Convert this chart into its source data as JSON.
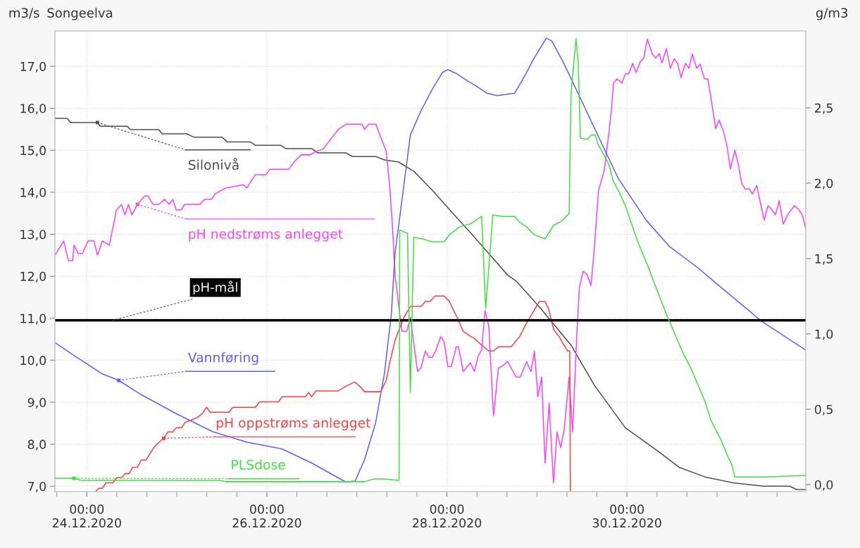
{
  "chart_data": {
    "type": "line",
    "title": "Songeelva",
    "ylabel": "m3/s",
    "y2label": "g/m3",
    "grid": true,
    "xlim": [
      "2020-12-23T15:30",
      "2020-12-31T23:40"
    ],
    "ylim": [
      6.87,
      17.84
    ],
    "y2lim": [
      -0.047,
      3.01
    ],
    "xticks": [
      {
        "value": "2020-12-23T16:00",
        "label": null
      },
      {
        "value": "2020-12-24T00:00",
        "label": "00:00\n24.12.2020"
      },
      {
        "value": "2020-12-24T08:00",
        "label": null
      },
      {
        "value": "2020-12-24T16:00",
        "label": null
      },
      {
        "value": "2020-12-25T00:00",
        "label": null
      },
      {
        "value": "2020-12-25T08:00",
        "label": null
      },
      {
        "value": "2020-12-25T16:00",
        "label": null
      },
      {
        "value": "2020-12-26T00:00",
        "label": "00:00\n26.12.2020"
      },
      {
        "value": "2020-12-26T08:00",
        "label": null
      },
      {
        "value": "2020-12-26T16:00",
        "label": null
      },
      {
        "value": "2020-12-27T00:00",
        "label": null
      },
      {
        "value": "2020-12-27T08:00",
        "label": null
      },
      {
        "value": "2020-12-27T16:00",
        "label": null
      },
      {
        "value": "2020-12-28T00:00",
        "label": "00:00\n28.12.2020"
      },
      {
        "value": "2020-12-28T08:00",
        "label": null
      },
      {
        "value": "2020-12-28T16:00",
        "label": null
      },
      {
        "value": "2020-12-29T00:00",
        "label": null
      },
      {
        "value": "2020-12-29T08:00",
        "label": null
      },
      {
        "value": "2020-12-29T16:00",
        "label": null
      },
      {
        "value": "2020-12-30T00:00",
        "label": "00:00\n30.12.2020"
      },
      {
        "value": "2020-12-30T08:00",
        "label": null
      },
      {
        "value": "2020-12-30T16:00",
        "label": null
      },
      {
        "value": "2020-12-31T00:00",
        "label": null
      },
      {
        "value": "2020-12-31T08:00",
        "label": null
      },
      {
        "value": "2020-12-31T16:00",
        "label": null
      }
    ],
    "yticks": [
      {
        "value": 7,
        "label": "7,0"
      },
      {
        "value": 8,
        "label": "8,0"
      },
      {
        "value": 9,
        "label": "9,0"
      },
      {
        "value": 10,
        "label": "10,0"
      },
      {
        "value": 11,
        "label": "11,0"
      },
      {
        "value": 12,
        "label": "12,0"
      },
      {
        "value": 13,
        "label": "13,0"
      },
      {
        "value": 14,
        "label": "14,0"
      },
      {
        "value": 15,
        "label": "15,0"
      },
      {
        "value": 16,
        "label": "16,0"
      },
      {
        "value": 17,
        "label": "17,0"
      }
    ],
    "y2ticks": [
      {
        "value": 0,
        "label": "0,0"
      },
      {
        "value": 0.5,
        "label": "0,5"
      },
      {
        "value": 1,
        "label": "1,0"
      },
      {
        "value": 1.5,
        "label": "1,5"
      },
      {
        "value": 2,
        "label": "2,0"
      },
      {
        "value": 2.5,
        "label": "2,5"
      }
    ],
    "ref_lines": [
      {
        "axis": "y",
        "value": 10.95,
        "label": "pH-mål",
        "color": "#000000"
      }
    ],
    "series": [
      {
        "name": "Silonivå",
        "color": "#505050",
        "x": [
          "2020-12-23T15:30",
          "2020-12-23T18:45",
          "2020-12-23T19:40",
          "2020-12-24T02:50",
          "2020-12-24T03:35",
          "2020-12-24T10:45",
          "2020-12-24T11:40",
          "2020-12-24T19:10",
          "2020-12-24T20:05",
          "2020-12-25T02:40",
          "2020-12-25T04:35",
          "2020-12-25T12:05",
          "2020-12-25T13:25",
          "2020-12-25T19:35",
          "2020-12-25T20:55",
          "2020-12-26T03:40",
          "2020-12-26T05:00",
          "2020-12-26T11:55",
          "2020-12-26T13:30",
          "2020-12-26T21:00",
          "2020-12-26T22:50",
          "2020-12-27T05:05",
          "2020-12-27T07:20",
          "2020-12-27T11:05",
          "2020-12-27T15:10",
          "2020-12-27T20:05",
          "2020-12-28T01:10",
          "2020-12-28T06:15",
          "2020-12-28T11:10",
          "2020-12-28T16:10",
          "2020-12-28T18:40",
          "2020-12-29T01:00",
          "2020-12-29T09:05",
          "2020-12-29T15:20",
          "2020-12-29T23:35",
          "2020-12-30T08:10",
          "2020-12-30T13:55",
          "2020-12-30T20:50",
          "2020-12-31T04:20",
          "2020-12-31T12:25",
          "2020-12-31T19:25",
          "2020-12-31T21:15",
          "2020-12-31T23:40"
        ],
        "values": [
          15.76,
          15.76,
          15.66,
          15.66,
          15.57,
          15.57,
          15.49,
          15.49,
          15.39,
          15.39,
          15.31,
          15.31,
          15.2,
          15.2,
          15.12,
          15.12,
          15.04,
          15.04,
          14.94,
          14.94,
          14.85,
          14.85,
          14.77,
          14.72,
          14.5,
          14.05,
          13.54,
          13.04,
          12.54,
          12.03,
          11.87,
          11.23,
          10.36,
          9.4,
          8.39,
          7.84,
          7.45,
          7.22,
          7.08,
          7.0,
          7.0,
          6.92,
          6.92
        ]
      },
      {
        "name": "pH nedstrøms anlegget",
        "color": "#ff40ff",
        "x": [
          "2020-12-23T15:30",
          "2020-12-23T17:50",
          "2020-12-23T19:05",
          "2020-12-23T20:15",
          "2020-12-23T20:35",
          "2020-12-23T21:45",
          "2020-12-23T22:50",
          "2020-12-24T00:20",
          "2020-12-24T01:55",
          "2020-12-24T02:50",
          "2020-12-24T04:10",
          "2020-12-24T06:00",
          "2020-12-24T07:55",
          "2020-12-24T09:15",
          "2020-12-24T10:10",
          "2020-12-24T11:05",
          "2020-12-24T12:00",
          "2020-12-24T13:30",
          "2020-12-24T15:25",
          "2020-12-24T16:20",
          "2020-12-24T17:40",
          "2020-12-24T19:10",
          "2020-12-24T20:40",
          "2020-12-24T22:00",
          "2020-12-24T22:55",
          "2020-12-24T23:50",
          "2020-12-25T01:10",
          "2020-12-25T02:05",
          "2020-12-25T06:05",
          "2020-12-25T07:25",
          "2020-12-25T09:15",
          "2020-12-25T10:10",
          "2020-12-25T13:00",
          "2020-12-25T17:45",
          "2020-12-25T18:40",
          "2020-12-25T20:55",
          "2020-12-25T23:45",
          "2020-12-26T00:50",
          "2020-12-26T05:55",
          "2020-12-26T07:15",
          "2020-12-26T09:10",
          "2020-12-26T11:35",
          "2020-12-26T12:55",
          "2020-12-26T14:55",
          "2020-12-26T19:05",
          "2020-12-26T21:00",
          "2020-12-27T01:20",
          "2020-12-27T02:05",
          "2020-12-27T03:10",
          "2020-12-27T05:05",
          "2020-12-27T06:20",
          "2020-12-27T07:50",
          "2020-12-27T08:50",
          "2020-12-27T09:35",
          "2020-12-27T10:10",
          "2020-12-27T12:00",
          "2020-12-27T13:20",
          "2020-12-27T14:15",
          "2020-12-27T16:10",
          "2020-12-27T17:05",
          "2020-12-27T18:15",
          "2020-12-27T19:10",
          "2020-12-27T20:05",
          "2020-12-27T21:00",
          "2020-12-27T22:20",
          "2020-12-27T23:15",
          "2020-12-28T00:15",
          "2020-12-28T01:10",
          "2020-12-28T02:30",
          "2020-12-28T03:05",
          "2020-12-28T04:20",
          "2020-12-28T06:15",
          "2020-12-28T07:20",
          "2020-12-28T08:20",
          "2020-12-28T09:15",
          "2020-12-28T10:10",
          "2020-12-28T11:10",
          "2020-12-28T12:25",
          "2020-12-28T13:45",
          "2020-12-28T14:40",
          "2020-12-28T16:10",
          "2020-12-28T18:25",
          "2020-12-28T19:35",
          "2020-12-28T21:15",
          "2020-12-28T22:25",
          "2020-12-28T23:20",
          "2020-12-29T00:15",
          "2020-12-29T01:15",
          "2020-12-29T02:10",
          "2020-12-29T03:15",
          "2020-12-29T04:25",
          "2020-12-29T05:20",
          "2020-12-29T06:20",
          "2020-12-29T07:15",
          "2020-12-29T08:35",
          "2020-12-29T09:30",
          "2020-12-29T10:35",
          "2020-12-29T11:20",
          "2020-12-29T12:20",
          "2020-12-29T13:25",
          "2020-12-29T14:25",
          "2020-12-29T15:20",
          "2020-12-29T16:25",
          "2020-12-29T17:55",
          "2020-12-29T19:05",
          "2020-12-29T19:50",
          "2020-12-29T20:25",
          "2020-12-29T21:20",
          "2020-12-29T22:40",
          "2020-12-29T23:35",
          "2020-12-30T00:30",
          "2020-12-30T01:30",
          "2020-12-30T02:25",
          "2020-12-30T03:30",
          "2020-12-30T04:30",
          "2020-12-30T05:25",
          "2020-12-30T06:45",
          "2020-12-30T07:40",
          "2020-12-30T08:35",
          "2020-12-30T09:20",
          "2020-12-30T10:30",
          "2020-12-30T11:35",
          "2020-12-30T12:35",
          "2020-12-30T13:30",
          "2020-12-30T14:25",
          "2020-12-30T15:35",
          "2020-12-30T16:30",
          "2020-12-30T17:25",
          "2020-12-30T18:35",
          "2020-12-30T19:30",
          "2020-12-30T20:40",
          "2020-12-30T21:35",
          "2020-12-30T22:30",
          "2020-12-30T23:40",
          "2020-12-31T00:35",
          "2020-12-31T01:45",
          "2020-12-31T02:40",
          "2020-12-31T03:35",
          "2020-12-31T04:45",
          "2020-12-31T05:40",
          "2020-12-31T06:35",
          "2020-12-31T07:30",
          "2020-12-31T08:40",
          "2020-12-31T09:25",
          "2020-12-31T10:35",
          "2020-12-31T11:40",
          "2020-12-31T12:35",
          "2020-12-31T13:35",
          "2020-12-31T14:40",
          "2020-12-31T15:35",
          "2020-12-31T16:35",
          "2020-12-31T17:40",
          "2020-12-31T18:50",
          "2020-12-31T20:40",
          "2020-12-31T21:50",
          "2020-12-31T22:45",
          "2020-12-31T23:40"
        ],
        "values": [
          12.5,
          12.84,
          12.37,
          12.37,
          12.74,
          12.54,
          12.54,
          12.84,
          12.84,
          12.5,
          12.84,
          12.74,
          13.58,
          13.71,
          13.46,
          13.71,
          13.46,
          13.71,
          13.91,
          13.91,
          13.71,
          13.71,
          13.83,
          13.71,
          13.83,
          13.58,
          13.58,
          13.71,
          13.71,
          13.83,
          13.83,
          13.96,
          14.1,
          14.18,
          14.1,
          14.42,
          14.42,
          14.55,
          14.55,
          14.72,
          14.89,
          14.89,
          14.97,
          15.02,
          15.5,
          15.62,
          15.62,
          15.5,
          15.62,
          15.62,
          15.31,
          14.97,
          14.05,
          13.04,
          12.03,
          10.69,
          10.69,
          11.03,
          9.73,
          9.82,
          10.22,
          10.07,
          10.07,
          10.22,
          10.56,
          10.44,
          9.85,
          9.85,
          10.32,
          10.32,
          9.73,
          9.94,
          9.73,
          10.1,
          10.24,
          11.19,
          10.81,
          8.68,
          9.82,
          9.85,
          9.97,
          9.6,
          9.6,
          9.97,
          9.73,
          10.22,
          9.13,
          9.6,
          7.55,
          8.98,
          7.08,
          8.29,
          7.92,
          8.34,
          9.6,
          8.29,
          10.52,
          11.75,
          12.12,
          12.03,
          11.78,
          12.7,
          14.05,
          14.5,
          15.34,
          15.94,
          16.6,
          16.7,
          16.6,
          16.82,
          16.82,
          17.07,
          16.85,
          17.1,
          17.2,
          17.65,
          17.29,
          17.2,
          17.3,
          17.08,
          17.42,
          16.95,
          17.18,
          17.07,
          16.73,
          17.07,
          16.95,
          17.29,
          16.95,
          17.05,
          16.7,
          16.7,
          16.18,
          15.51,
          15.72,
          15.44,
          15.1,
          14.55,
          15.0,
          14.67,
          14.21,
          14.08,
          14.08,
          13.96,
          14.16,
          13.71,
          13.34,
          13.68,
          13.58,
          13.46,
          13.8,
          13.24,
          13.46,
          13.68,
          13.58,
          13.46,
          13.12
        ]
      },
      {
        "name": "Vannføring",
        "color": "#6060ff",
        "x": [
          "2020-12-23T15:30",
          "2020-12-23T21:00",
          "2020-12-24T04:00",
          "2020-12-24T08:30",
          "2020-12-24T14:30",
          "2020-12-25T00:00",
          "2020-12-25T09:30",
          "2020-12-25T18:40",
          "2020-12-26T04:00",
          "2020-12-26T12:00",
          "2020-12-26T21:00",
          "2020-12-26T23:30",
          "2020-12-27T02:00",
          "2020-12-27T05:00",
          "2020-12-27T07:20",
          "2020-12-27T09:10",
          "2020-12-27T10:10",
          "2020-12-27T14:15",
          "2020-12-27T17:05",
          "2020-12-27T20:05",
          "2020-12-27T22:45",
          "2020-12-28T00:15",
          "2020-12-28T02:40",
          "2020-12-28T05:30",
          "2020-12-28T08:10",
          "2020-12-28T10:35",
          "2020-12-28T13:25",
          "2020-12-28T18:05",
          "2020-12-28T20:30",
          "2020-12-28T23:10",
          "2020-12-29T01:00",
          "2020-12-29T02:30",
          "2020-12-29T04:00",
          "2020-12-29T07:10",
          "2020-12-29T21:40",
          "2020-12-30T05:10",
          "2020-12-30T11:25",
          "2020-12-30T18:55",
          "2020-12-30T23:15",
          "2020-12-31T11:50",
          "2020-12-31T23:40"
        ],
        "values": [
          10.42,
          10.09,
          9.68,
          9.52,
          9.18,
          8.72,
          8.3,
          8.05,
          7.89,
          7.55,
          7.1,
          7.12,
          7.62,
          8.51,
          9.68,
          11.08,
          12.54,
          15.36,
          15.94,
          16.45,
          16.85,
          16.92,
          16.82,
          16.65,
          16.51,
          16.36,
          16.3,
          16.36,
          16.73,
          17.18,
          17.45,
          17.67,
          17.6,
          17.07,
          14.33,
          13.33,
          12.7,
          12.2,
          11.87,
          10.93,
          10.24
        ]
      },
      {
        "name": "pH oppstrøms anlegget",
        "color": "#ff4040",
        "x": [
          "2020-12-24T02:25",
          "2020-12-24T03:10",
          "2020-12-24T04:10",
          "2020-12-24T05:05",
          "2020-12-24T06:55",
          "2020-12-24T07:55",
          "2020-12-24T09:15",
          "2020-12-24T10:10",
          "2020-12-24T11:15",
          "2020-12-24T12:15",
          "2020-12-24T13:30",
          "2020-12-24T14:30",
          "2020-12-24T15:45",
          "2020-12-24T16:45",
          "2020-12-24T17:50",
          "2020-12-24T19:10",
          "2020-12-24T20:30",
          "2020-12-24T21:35",
          "2020-12-24T22:55",
          "2020-12-24T23:50",
          "2020-12-25T01:20",
          "2020-12-25T02:05",
          "2020-12-25T05:30",
          "2020-12-25T06:50",
          "2020-12-25T07:55",
          "2020-12-25T08:55",
          "2020-12-25T13:55",
          "2020-12-25T14:55",
          "2020-12-25T20:55",
          "2020-12-25T22:05",
          "2020-12-26T03:05",
          "2020-12-26T04:05",
          "2020-12-26T10:15",
          "2020-12-26T11:10",
          "2020-12-26T11:55",
          "2020-12-26T13:05",
          "2020-12-26T19:05",
          "2020-12-26T21:00",
          "2020-12-26T23:25",
          "2020-12-27T00:45",
          "2020-12-27T02:05",
          "2020-12-27T06:20",
          "2020-12-27T07:50",
          "2020-12-27T08:50",
          "2020-12-27T10:10",
          "2020-12-27T11:05",
          "2020-12-27T12:35",
          "2020-12-27T14:15",
          "2020-12-27T17:05",
          "2020-12-27T18:15",
          "2020-12-27T19:30",
          "2020-12-27T20:50",
          "2020-12-27T23:15",
          "2020-12-28T00:35",
          "2020-12-28T02:40",
          "2020-12-28T04:20",
          "2020-12-28T06:15",
          "2020-12-28T07:20",
          "2020-12-28T09:15",
          "2020-12-28T11:10",
          "2020-12-28T12:25",
          "2020-12-28T13:45",
          "2020-12-28T17:10",
          "2020-12-28T19:25",
          "2020-12-28T20:55",
          "2020-12-28T22:45",
          "2020-12-29T00:40",
          "2020-12-29T02:10",
          "2020-12-29T03:05",
          "2020-12-29T04:25",
          "2020-12-29T05:55",
          "2020-12-29T08:10",
          "2020-12-29T08:45",
          "2020-12-29T08:55"
        ],
        "values": [
          6.88,
          6.95,
          6.95,
          7.08,
          7.08,
          7.2,
          7.2,
          7.3,
          7.3,
          7.45,
          7.45,
          7.62,
          7.62,
          7.76,
          7.92,
          8.04,
          8.14,
          8.29,
          8.29,
          8.39,
          8.39,
          8.51,
          8.64,
          8.73,
          8.88,
          8.76,
          8.76,
          8.88,
          8.88,
          9.01,
          9.01,
          9.13,
          9.13,
          9.23,
          9.13,
          9.27,
          9.27,
          9.38,
          9.48,
          9.38,
          9.25,
          9.25,
          9.52,
          9.97,
          10.47,
          10.69,
          11.03,
          11.28,
          11.28,
          11.4,
          11.4,
          11.53,
          11.53,
          11.41,
          11.03,
          10.69,
          10.57,
          10.52,
          10.36,
          10.22,
          10.22,
          10.32,
          10.32,
          10.57,
          10.83,
          11.11,
          11.4,
          11.4,
          11.23,
          10.74,
          10.56,
          10.22,
          10.22,
          6.88
        ]
      },
      {
        "name": "PLSdose",
        "color": "#40e040",
        "axis": "y2",
        "x": [
          "2020-12-23T15:30",
          "2020-12-23T20:35",
          "2020-12-23T22:30",
          "2020-12-25T11:40",
          "2020-12-25T13:00",
          "2020-12-27T02:05",
          "2020-12-27T04:30",
          "2020-12-27T07:20",
          "2020-12-27T11:15",
          "2020-12-27T11:25",
          "2020-12-27T13:10",
          "2020-12-27T13:30",
          "2020-12-27T14:15",
          "2020-12-27T15:10",
          "2020-12-27T17:40",
          "2020-12-27T20:05",
          "2020-12-27T23:15",
          "2020-12-28T00:45",
          "2020-12-28T03:25",
          "2020-12-28T06:15",
          "2020-12-28T09:15",
          "2020-12-28T10:20",
          "2020-12-28T12:15",
          "2020-12-28T14:40",
          "2020-12-28T18:05",
          "2020-12-28T19:25",
          "2020-12-28T21:15",
          "2020-12-28T23:10",
          "2020-12-29T02:10",
          "2020-12-29T04:25",
          "2020-12-29T06:40",
          "2020-12-29T08:35",
          "2020-12-29T09:05",
          "2020-12-29T10:25",
          "2020-12-29T11:00",
          "2020-12-29T11:35",
          "2020-12-29T13:25",
          "2020-12-29T14:25",
          "2020-12-29T15:30",
          "2020-12-29T16:15",
          "2020-12-29T17:35",
          "2020-12-29T19:05",
          "2020-12-29T20:25",
          "2020-12-29T21:45",
          "2020-12-29T23:35",
          "2020-12-30T01:30",
          "2020-12-30T02:55",
          "2020-12-30T04:15",
          "2020-12-30T05:45",
          "2020-12-30T07:05",
          "2020-12-30T10:50",
          "2020-12-30T12:45",
          "2020-12-30T15:10",
          "2020-12-30T17:05",
          "2020-12-30T20:50",
          "2020-12-30T22:20",
          "2020-12-31T01:10",
          "2020-12-31T03:00",
          "2020-12-31T04:00",
          "2020-12-31T04:45",
          "2020-12-31T12:25",
          "2020-12-31T23:40"
        ],
        "values": [
          0.042,
          0.042,
          0.028,
          0.028,
          0.019,
          0.019,
          0.037,
          0.037,
          0.028,
          1.69,
          1.67,
          1.67,
          0.61,
          1.64,
          1.63,
          1.61,
          1.61,
          1.66,
          1.71,
          1.73,
          1.78,
          1.17,
          1.79,
          1.78,
          1.78,
          1.74,
          1.71,
          1.66,
          1.63,
          1.72,
          1.75,
          1.8,
          2.59,
          2.96,
          2.81,
          2.3,
          2.29,
          2.32,
          2.32,
          2.26,
          2.2,
          2.13,
          2.01,
          1.95,
          1.85,
          1.71,
          1.61,
          1.53,
          1.44,
          1.35,
          1.11,
          1.0,
          0.86,
          0.77,
          0.55,
          0.43,
          0.29,
          0.18,
          0.13,
          0.05,
          0.05,
          0.06
        ]
      }
    ]
  }
}
